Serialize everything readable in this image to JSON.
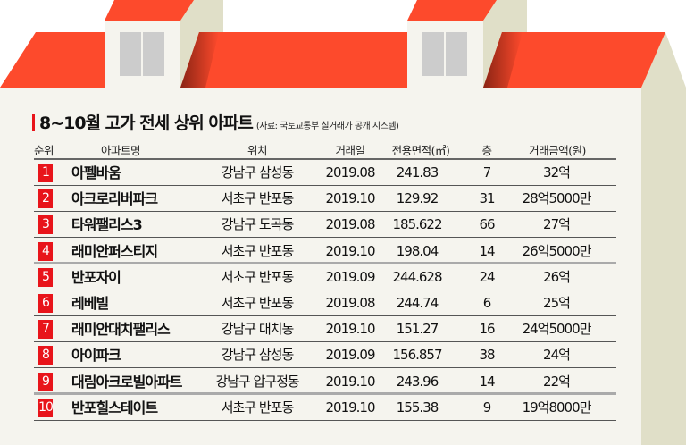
{
  "title": "8~10월 고가 전세 상위 아파트",
  "source": "(자료: 국토교통부 실거래가 공개 시스템)",
  "colors": {
    "accent": "#e8141a",
    "roof": "#fd4a2c",
    "wall": "#f5f4ee",
    "side": "#e0dfc8"
  },
  "headers": {
    "rank": "순위",
    "name": "아파트명",
    "location": "위치",
    "date": "거래일",
    "area": "전용면적(㎡)",
    "floor": "층",
    "price": "거래금액(원)"
  },
  "rows": [
    {
      "rank": "1",
      "name": "아펠바움",
      "location": "강남구 삼성동",
      "date": "2019.08",
      "area": "241.83",
      "floor": "7",
      "price": "32억"
    },
    {
      "rank": "2",
      "name": "아크로리버파크",
      "location": "서초구 반포동",
      "date": "2019.10",
      "area": "129.92",
      "floor": "31",
      "price": "28억5000만"
    },
    {
      "rank": "3",
      "name": "타워팰리스3",
      "location": "강남구 도곡동",
      "date": "2019.08",
      "area": "185.622",
      "floor": "66",
      "price": "27억"
    },
    {
      "rank": "4",
      "name": "래미안퍼스티지",
      "location": "서초구 반포동",
      "date": "2019.10",
      "area": "198.04",
      "floor": "14",
      "price": "26억5000만"
    },
    {
      "rank": "5",
      "name": "반포자이",
      "location": "서초구 반포동",
      "date": "2019.09",
      "area": "244.628",
      "floor": "24",
      "price": "26억"
    },
    {
      "rank": "6",
      "name": "레베빌",
      "location": "서초구 반포동",
      "date": "2019.08",
      "area": "244.74",
      "floor": "6",
      "price": "25억"
    },
    {
      "rank": "7",
      "name": "래미안대치팰리스",
      "location": "강남구 대치동",
      "date": "2019.10",
      "area": "151.27",
      "floor": "16",
      "price": "24억5000만"
    },
    {
      "rank": "8",
      "name": "아이파크",
      "location": "강남구 삼성동",
      "date": "2019.09",
      "area": "156.857",
      "floor": "38",
      "price": "24억"
    },
    {
      "rank": "9",
      "name": "대림아크로빌아파트",
      "location": "강남구 압구정동",
      "date": "2019.10",
      "area": "243.96",
      "floor": "14",
      "price": "22억"
    },
    {
      "rank": "10",
      "name": "반포힐스테이트",
      "location": "서초구 반포동",
      "date": "2019.10",
      "area": "155.38",
      "floor": "9",
      "price": "19억8000만"
    }
  ]
}
